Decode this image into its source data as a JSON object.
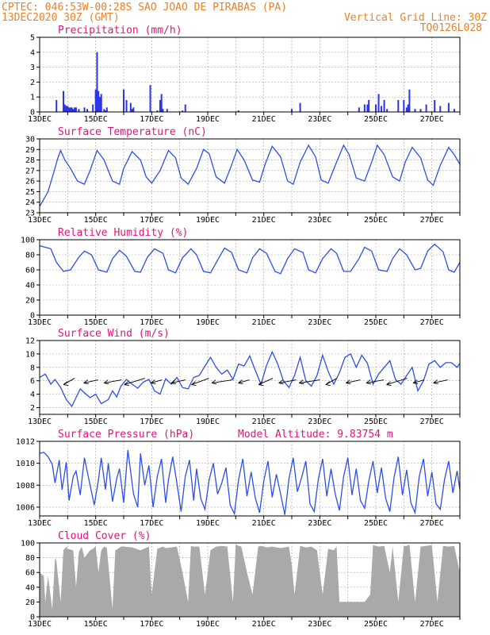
{
  "header": {
    "location": "CPTEC:  046:53W-00:28S  SAO JOAO DE PIRABAS (PA)",
    "datetime": "13DEC2020 30Z (GMT)",
    "grid_note": "Vertical Grid Line: 30Z",
    "run_code": "TQ0126L028"
  },
  "colors": {
    "line": "#2e4fe6",
    "bar": "#2b35e8",
    "cloud": "#a9a9a9",
    "title": "#e0167a",
    "header": "#e8822a",
    "grid": "#888888"
  },
  "x_axis": {
    "labels": [
      "13DEC",
      "15DEC",
      "17DEC",
      "19DEC",
      "21DEC",
      "23DEC",
      "25DEC",
      "27DEC"
    ],
    "days": 15
  },
  "chart_data": [
    {
      "id": "precip",
      "type": "bar",
      "title": "Precipitation (mm/h)",
      "ylim": [
        0,
        5
      ],
      "yticks": [
        0,
        1,
        2,
        3,
        4,
        5
      ],
      "x_unit": "days since 13DEC",
      "x": [
        0.6,
        0.85,
        0.9,
        0.95,
        1.0,
        1.05,
        1.1,
        1.15,
        1.2,
        1.25,
        1.3,
        1.4,
        1.6,
        1.7,
        1.9,
        2.0,
        2.05,
        2.1,
        2.15,
        2.2,
        2.3,
        2.35,
        2.4,
        3.0,
        3.1,
        3.25,
        3.3,
        3.35,
        3.95,
        4.2,
        4.3,
        4.35,
        4.4,
        4.55,
        5.1,
        5.2,
        7.1,
        9.0,
        9.3,
        11.4,
        11.6,
        11.7,
        11.75,
        12.0,
        12.1,
        12.2,
        12.3,
        12.4,
        12.8,
        13.0,
        13.1,
        13.15,
        13.2,
        13.4,
        13.6,
        13.8,
        14.1,
        14.3,
        14.6,
        14.8
      ],
      "values": [
        0.8,
        1.4,
        0.5,
        0.4,
        0.4,
        0.3,
        0.3,
        0.3,
        0.2,
        0.3,
        0.3,
        0.2,
        0.3,
        0.2,
        0.5,
        1.5,
        4.0,
        1.4,
        1.0,
        1.2,
        0.2,
        0.1,
        0.3,
        1.5,
        0.8,
        0.6,
        0.2,
        0.3,
        1.8,
        0.1,
        0.8,
        1.2,
        0.2,
        0.2,
        0.1,
        0.5,
        0.1,
        0.2,
        0.6,
        0.3,
        0.5,
        0.5,
        0.8,
        0.5,
        1.2,
        0.4,
        0.8,
        0.2,
        0.8,
        0.8,
        0.3,
        0.5,
        1.5,
        0.2,
        0.2,
        0.5,
        0.8,
        0.4,
        0.6,
        0.2
      ]
    },
    {
      "id": "temp",
      "type": "line",
      "title": "Surface Temperature (nC)",
      "ylim": [
        23,
        30
      ],
      "yticks": [
        23,
        24,
        25,
        26,
        27,
        28,
        29,
        30
      ],
      "x_unit": "days since 13DEC",
      "x": [
        0,
        0.3,
        0.5,
        0.65,
        0.75,
        0.9,
        1.1,
        1.35,
        1.6,
        1.8,
        2.05,
        2.3,
        2.6,
        2.85,
        3.0,
        3.3,
        3.6,
        3.8,
        4.0,
        4.3,
        4.6,
        4.85,
        5.05,
        5.3,
        5.6,
        5.85,
        6.05,
        6.3,
        6.6,
        6.85,
        7.05,
        7.3,
        7.6,
        7.85,
        8.05,
        8.3,
        8.6,
        8.85,
        9.05,
        9.3,
        9.6,
        9.85,
        10.05,
        10.3,
        10.6,
        10.85,
        11.05,
        11.3,
        11.6,
        11.85,
        12.05,
        12.3,
        12.6,
        12.85,
        13.05,
        13.3,
        13.6,
        13.85,
        14.05,
        14.3,
        14.6,
        14.8,
        15.0
      ],
      "values": [
        23.6,
        25.0,
        26.8,
        28.2,
        28.9,
        28.0,
        27.2,
        26.0,
        25.7,
        27.0,
        28.9,
        28.0,
        26.0,
        25.7,
        27.2,
        28.8,
        28.0,
        26.4,
        25.8,
        27.0,
        28.9,
        28.2,
        26.3,
        25.7,
        27.2,
        29.0,
        28.6,
        26.4,
        25.8,
        27.5,
        29.0,
        28.0,
        26.1,
        25.9,
        27.6,
        29.3,
        28.3,
        26.0,
        25.7,
        27.8,
        29.4,
        28.3,
        26.1,
        25.8,
        27.8,
        29.4,
        28.5,
        26.3,
        26.0,
        27.8,
        29.4,
        28.5,
        26.4,
        26.0,
        27.8,
        29.2,
        28.2,
        26.1,
        25.6,
        27.5,
        29.2,
        28.5,
        27.6
      ]
    },
    {
      "id": "rh",
      "type": "line",
      "title": "Relative Humidity (%)",
      "ylim": [
        0,
        100
      ],
      "yticks": [
        0,
        20,
        40,
        60,
        80,
        100
      ],
      "x_unit": "days since 13DEC",
      "x": [
        0,
        0.2,
        0.4,
        0.6,
        0.85,
        1.1,
        1.4,
        1.6,
        1.85,
        2.1,
        2.4,
        2.6,
        2.85,
        3.1,
        3.4,
        3.6,
        3.85,
        4.1,
        4.4,
        4.6,
        4.85,
        5.1,
        5.4,
        5.6,
        5.85,
        6.1,
        6.4,
        6.6,
        6.85,
        7.1,
        7.4,
        7.6,
        7.85,
        8.1,
        8.4,
        8.6,
        8.85,
        9.1,
        9.4,
        9.6,
        9.85,
        10.1,
        10.4,
        10.6,
        10.85,
        11.1,
        11.4,
        11.6,
        11.85,
        12.1,
        12.4,
        12.6,
        12.85,
        13.1,
        13.4,
        13.6,
        13.85,
        14.1,
        14.4,
        14.6,
        14.8,
        15.0
      ],
      "values": [
        92,
        90,
        88,
        70,
        58,
        60,
        77,
        85,
        80,
        60,
        57,
        75,
        86,
        78,
        58,
        57,
        77,
        88,
        82,
        60,
        56,
        76,
        88,
        80,
        58,
        56,
        76,
        89,
        83,
        60,
        56,
        76,
        88,
        82,
        58,
        55,
        75,
        88,
        83,
        60,
        56,
        75,
        88,
        82,
        58,
        58,
        75,
        90,
        85,
        60,
        58,
        75,
        88,
        80,
        60,
        62,
        85,
        94,
        84,
        60,
        57,
        70
      ]
    },
    {
      "id": "wind",
      "type": "line",
      "title": "Surface Wind (m/s)",
      "ylim": [
        1,
        12
      ],
      "yticks": [
        2,
        4,
        6,
        8,
        10,
        12
      ],
      "x_unit": "days since 13DEC",
      "x": [
        0,
        0.2,
        0.4,
        0.55,
        0.75,
        0.95,
        1.15,
        1.3,
        1.45,
        1.6,
        1.8,
        2.0,
        2.2,
        2.45,
        2.6,
        2.75,
        2.9,
        3.1,
        3.3,
        3.5,
        3.7,
        3.9,
        4.1,
        4.3,
        4.5,
        4.7,
        4.9,
        5.1,
        5.3,
        5.5,
        5.7,
        5.9,
        6.1,
        6.3,
        6.5,
        6.7,
        6.9,
        7.1,
        7.3,
        7.5,
        7.7,
        7.9,
        8.1,
        8.3,
        8.5,
        8.7,
        8.9,
        9.1,
        9.3,
        9.5,
        9.7,
        9.9,
        10.1,
        10.3,
        10.5,
        10.7,
        10.9,
        11.1,
        11.3,
        11.5,
        11.7,
        11.9,
        12.1,
        12.3,
        12.5,
        12.7,
        12.9,
        13.1,
        13.3,
        13.5,
        13.7,
        13.9,
        14.1,
        14.3,
        14.5,
        14.7,
        14.9,
        15.0
      ],
      "values": [
        6.5,
        7.0,
        5.5,
        6.2,
        5.0,
        3.2,
        2.2,
        3.5,
        4.8,
        4.2,
        3.5,
        4.0,
        2.6,
        3.2,
        4.5,
        3.6,
        5.2,
        6.2,
        5.5,
        4.9,
        5.8,
        6.2,
        4.5,
        4.0,
        6.3,
        5.5,
        6.5,
        5.0,
        4.8,
        6.5,
        6.8,
        8.2,
        9.5,
        8.0,
        7.0,
        7.6,
        6.2,
        8.5,
        8.2,
        9.7,
        7.5,
        5.5,
        8.3,
        10.3,
        8.5,
        6.0,
        5.0,
        6.8,
        9.5,
        6.0,
        5.2,
        6.8,
        9.8,
        7.4,
        5.5,
        7.2,
        9.5,
        10.0,
        8.0,
        9.8,
        8.6,
        5.5,
        7.0,
        8.0,
        9.0,
        6.2,
        5.5,
        6.8,
        8.0,
        4.5,
        6.0,
        8.5,
        9.0,
        8.0,
        8.7,
        8.7,
        8.0,
        8.6
      ]
    },
    {
      "id": "pres",
      "type": "line",
      "title": "Surface Pressure (hPa)",
      "annotation": "Model Altitude: 9.83754 m",
      "ylim": [
        1005.2,
        1012
      ],
      "yticks": [
        1006,
        1008,
        1010,
        1012
      ],
      "x_unit": "days since 13DEC",
      "x": [
        0,
        0.15,
        0.3,
        0.45,
        0.55,
        0.7,
        0.8,
        0.95,
        1.05,
        1.2,
        1.3,
        1.45,
        1.6,
        1.8,
        1.95,
        2.1,
        2.2,
        2.35,
        2.45,
        2.6,
        2.75,
        2.85,
        3.0,
        3.15,
        3.35,
        3.5,
        3.6,
        3.75,
        3.9,
        4.05,
        4.2,
        4.35,
        4.5,
        4.6,
        4.75,
        4.9,
        5.05,
        5.2,
        5.35,
        5.5,
        5.6,
        5.75,
        5.9,
        6.05,
        6.2,
        6.35,
        6.5,
        6.65,
        6.8,
        6.95,
        7.1,
        7.25,
        7.4,
        7.55,
        7.7,
        7.85,
        8.0,
        8.15,
        8.3,
        8.45,
        8.6,
        8.75,
        8.9,
        9.05,
        9.2,
        9.35,
        9.5,
        9.65,
        9.8,
        9.95,
        10.1,
        10.25,
        10.4,
        10.55,
        10.7,
        10.85,
        11.0,
        11.15,
        11.3,
        11.45,
        11.6,
        11.75,
        11.9,
        12.05,
        12.2,
        12.35,
        12.5,
        12.65,
        12.8,
        12.95,
        13.1,
        13.25,
        13.4,
        13.55,
        13.7,
        13.85,
        14.0,
        14.15,
        14.3,
        14.45,
        14.6,
        14.75,
        14.9,
        15.0
      ],
      "values": [
        1010.9,
        1011.0,
        1010.6,
        1009.9,
        1008.2,
        1010.3,
        1007.6,
        1010.1,
        1006.6,
        1008.8,
        1009.3,
        1007.1,
        1010.5,
        1008.0,
        1006.2,
        1008.5,
        1010.5,
        1007.6,
        1010.0,
        1006.5,
        1008.6,
        1009.5,
        1006.4,
        1011.2,
        1007.2,
        1006.0,
        1010.9,
        1008.0,
        1009.8,
        1006.0,
        1008.8,
        1010.4,
        1006.4,
        1008.5,
        1010.6,
        1008.2,
        1005.6,
        1008.8,
        1010.3,
        1006.6,
        1009.5,
        1006.8,
        1005.8,
        1008.5,
        1010.0,
        1007.2,
        1008.2,
        1009.6,
        1006.2,
        1005.4,
        1008.5,
        1010.4,
        1007.0,
        1009.2,
        1006.8,
        1005.5,
        1008.4,
        1010.2,
        1006.9,
        1009.0,
        1007.2,
        1005.3,
        1008.6,
        1010.5,
        1007.4,
        1008.7,
        1010.2,
        1006.3,
        1005.6,
        1008.6,
        1010.4,
        1007.0,
        1009.5,
        1007.2,
        1005.7,
        1008.8,
        1010.5,
        1007.1,
        1009.5,
        1006.6,
        1005.9,
        1008.4,
        1010.2,
        1007.3,
        1009.6,
        1006.8,
        1005.6,
        1008.7,
        1010.6,
        1007.1,
        1009.4,
        1006.4,
        1005.5,
        1008.8,
        1010.4,
        1007.0,
        1009.2,
        1006.3,
        1005.8,
        1008.5,
        1010.2,
        1007.3,
        1009.3,
        1007.6
      ]
    },
    {
      "id": "cloud",
      "type": "area",
      "title": "Cloud Cover (%)",
      "ylim": [
        0,
        100
      ],
      "yticks": [
        0,
        20,
        40,
        60,
        80,
        100
      ],
      "x_unit": "days since 13DEC",
      "x": [
        0,
        0.15,
        0.2,
        0.3,
        0.45,
        0.55,
        0.6,
        0.75,
        0.85,
        0.95,
        1.0,
        1.2,
        1.3,
        1.4,
        1.5,
        1.6,
        1.8,
        1.9,
        2.0,
        2.1,
        2.2,
        2.3,
        2.4,
        2.6,
        2.7,
        2.8,
        2.9,
        3.0,
        3.3,
        3.6,
        3.9,
        4.0,
        4.2,
        4.4,
        4.5,
        4.7,
        4.9,
        5.1,
        5.3,
        5.4,
        5.5,
        5.7,
        5.9,
        6.1,
        6.3,
        6.5,
        6.7,
        6.9,
        7.0,
        7.1,
        7.2,
        7.4,
        7.6,
        7.8,
        7.9,
        8.1,
        8.3,
        8.6,
        8.9,
        9.0,
        9.1,
        9.3,
        9.5,
        9.7,
        9.9,
        10.1,
        10.3,
        10.5,
        10.6,
        10.7,
        11.0,
        11.2,
        11.4,
        11.6,
        11.8,
        11.9,
        12.1,
        12.3,
        12.5,
        12.6,
        12.8,
        13.0,
        13.1,
        13.2,
        13.4,
        13.6,
        13.8,
        14.0,
        14.2,
        14.4,
        14.6,
        14.8,
        15.0
      ],
      "values": [
        60,
        55,
        20,
        55,
        10,
        80,
        75,
        20,
        90,
        95,
        92,
        90,
        40,
        88,
        95,
        80,
        90,
        92,
        95,
        60,
        90,
        95,
        93,
        10,
        90,
        92,
        95,
        95,
        94,
        90,
        95,
        30,
        92,
        95,
        93,
        94,
        95,
        60,
        20,
        96,
        95,
        95,
        30,
        90,
        95,
        96,
        95,
        20,
        98,
        96,
        95,
        60,
        30,
        95,
        96,
        94,
        95,
        93,
        95,
        70,
        30,
        96,
        94,
        95,
        90,
        30,
        92,
        90,
        95,
        20,
        20,
        20,
        20,
        20,
        30,
        97,
        95,
        96,
        60,
        95,
        20,
        96,
        96,
        98,
        20,
        95,
        96,
        97,
        20,
        96,
        95,
        96,
        60
      ]
    }
  ]
}
